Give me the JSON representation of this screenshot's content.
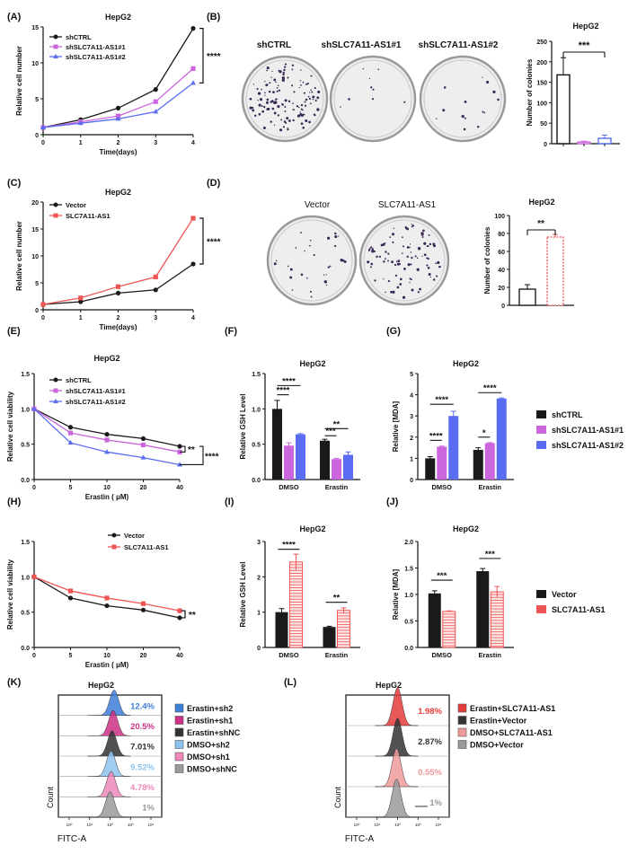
{
  "figure": {
    "panel_letters": [
      "(A)",
      "(B)",
      "(C)",
      "(D)",
      "(E)",
      "(F)",
      "(G)",
      "(H)",
      "(I)",
      "(J)",
      "(K)",
      "(L)"
    ],
    "cell_line": "HepG2",
    "colors": {
      "shCTRL": "#1a1a1a",
      "sh1": "#cc66dd",
      "sh2": "#5a6cf2",
      "vector": "#1a1a1a",
      "slc": "#ee5555",
      "colonyPurple": "#3a2a55",
      "k_colors": [
        "#3d7fd9",
        "#cc2f86",
        "#333333",
        "#8fc3ef",
        "#ee88bb",
        "#9a9a9a"
      ],
      "l_colors": [
        "#e53b3b",
        "#333333",
        "#ef9a9a",
        "#9a9a9a"
      ]
    }
  },
  "chart_data": [
    {
      "id": "A",
      "type": "line",
      "title": "HepG2",
      "xlabel": "Time(days)",
      "ylabel": "Relative cell number",
      "x": [
        0,
        1,
        2,
        3,
        4
      ],
      "xlim": [
        0,
        4
      ],
      "ylim": [
        0,
        15
      ],
      "xticks": [
        "0",
        "1",
        "2",
        "3",
        "4"
      ],
      "yticks": [
        "0",
        "5",
        "10",
        "15"
      ],
      "series": [
        {
          "name": "shCTRL",
          "values": [
            1.0,
            2.1,
            3.7,
            6.3,
            14.8
          ]
        },
        {
          "name": "shSLC7A11-AS1#1",
          "values": [
            1.0,
            1.8,
            2.6,
            4.6,
            9.2
          ]
        },
        {
          "name": "shSLC7A11-AS1#2",
          "values": [
            1.0,
            1.6,
            2.2,
            3.2,
            7.2
          ]
        }
      ],
      "annotations": [
        "****"
      ]
    },
    {
      "id": "B",
      "type": "bar",
      "title": "HepG2",
      "ylabel": "Number of colonies",
      "ylim": [
        0,
        250
      ],
      "yticks": [
        "0",
        "50",
        "100",
        "150",
        "200",
        "250"
      ],
      "categories": [
        "shCTRL",
        "shSLC7A11-AS1#1",
        "shSLC7A11-AS1#2"
      ],
      "values": [
        168,
        4,
        13
      ],
      "errors": [
        42,
        2,
        8
      ],
      "annotations": [
        "***"
      ]
    },
    {
      "id": "C",
      "type": "line",
      "title": "HepG2",
      "xlabel": "Time(days)",
      "ylabel": "Relative cell number",
      "x": [
        0,
        1,
        2,
        3,
        4
      ],
      "xlim": [
        0,
        4
      ],
      "ylim": [
        0,
        20
      ],
      "xticks": [
        "0",
        "1",
        "2",
        "3",
        "4"
      ],
      "yticks": [
        "0",
        "5",
        "10",
        "15",
        "20"
      ],
      "series": [
        {
          "name": "Vector",
          "values": [
            1.0,
            1.5,
            3.1,
            3.7,
            8.5
          ]
        },
        {
          "name": "SLC7A11-AS1",
          "values": [
            1.0,
            2.2,
            4.3,
            6.1,
            17.0
          ]
        }
      ],
      "annotations": [
        "****"
      ]
    },
    {
      "id": "D",
      "type": "bar",
      "title": "HepG2",
      "ylabel": "Number of colonies",
      "ylim": [
        0,
        100
      ],
      "yticks": [
        "0",
        "20",
        "40",
        "60",
        "80",
        "100"
      ],
      "categories": [
        "Vector",
        "SLC7A11-AS1"
      ],
      "values": [
        18,
        76
      ],
      "errors": [
        5,
        3
      ],
      "annotations": [
        "**"
      ]
    },
    {
      "id": "E",
      "type": "line",
      "title": "HepG2",
      "xlabel": "Erastin ( μM)",
      "ylabel": "Relative cell viability",
      "x": [
        0,
        5,
        10,
        20,
        40
      ],
      "xlim": [
        0,
        40
      ],
      "ylim": [
        0,
        1.5
      ],
      "xticks": [
        "0",
        "5",
        "10",
        "20",
        "40"
      ],
      "yticks": [
        "0.0",
        "0.5",
        "1.0",
        "1.5"
      ],
      "series": [
        {
          "name": "shCTRL",
          "values": [
            1.0,
            0.74,
            0.64,
            0.58,
            0.47
          ]
        },
        {
          "name": "shSLC7A11-AS1#1",
          "values": [
            1.0,
            0.66,
            0.56,
            0.49,
            0.39
          ]
        },
        {
          "name": "shSLC7A11-AS1#2",
          "values": [
            1.0,
            0.52,
            0.39,
            0.31,
            0.21
          ]
        }
      ],
      "annotations": [
        "**",
        "****"
      ]
    },
    {
      "id": "F",
      "type": "bar",
      "title": "HepG2",
      "ylabel": "Relative GSH Level",
      "ylim": [
        0,
        1.5
      ],
      "yticks": [
        "0.0",
        "0.5",
        "1.0",
        "1.5"
      ],
      "categories": [
        "DMSO",
        "Erastin"
      ],
      "series": [
        {
          "name": "shCTRL",
          "values": [
            1.0,
            0.55
          ],
          "errors": [
            0.12,
            0.02
          ]
        },
        {
          "name": "shSLC7A11-AS1#1",
          "values": [
            0.48,
            0.29
          ],
          "errors": [
            0.04,
            0.01
          ]
        },
        {
          "name": "shSLC7A11-AS1#2",
          "values": [
            0.64,
            0.35
          ],
          "errors": [
            0.01,
            0.04
          ]
        }
      ],
      "annotations": [
        "****",
        "****",
        "**",
        "***"
      ]
    },
    {
      "id": "G",
      "type": "bar",
      "title": "HepG2",
      "ylabel": "Relative [MDA]",
      "ylim": [
        0,
        5
      ],
      "yticks": [
        "0",
        "1",
        "2",
        "3",
        "4",
        "5"
      ],
      "categories": [
        "DMSO",
        "Erastin"
      ],
      "series": [
        {
          "name": "shCTRL",
          "values": [
            1.0,
            1.4
          ],
          "errors": [
            0.08,
            0.1
          ]
        },
        {
          "name": "shSLC7A11-AS1#1",
          "values": [
            1.55,
            1.72
          ],
          "errors": [
            0.03,
            0.02
          ]
        },
        {
          "name": "shSLC7A11-AS1#2",
          "values": [
            3.0,
            3.82
          ],
          "errors": [
            0.22,
            0.03
          ]
        }
      ],
      "annotations": [
        "****",
        "****",
        "*",
        "****"
      ],
      "legend": [
        "shCTRL",
        "shSLC7A11-AS1#1",
        "shSLC7A11-AS1#2"
      ]
    },
    {
      "id": "H",
      "type": "line",
      "title": "",
      "xlabel": "Erastin ( μM)",
      "ylabel": "Relative cell viability",
      "x": [
        0,
        5,
        10,
        20,
        40
      ],
      "xlim": [
        0,
        40
      ],
      "ylim": [
        0,
        1.5
      ],
      "xticks": [
        "0",
        "5",
        "10",
        "20",
        "40"
      ],
      "yticks": [
        "0.0",
        "0.5",
        "1.0",
        "1.5"
      ],
      "series": [
        {
          "name": "Vector",
          "values": [
            1.0,
            0.7,
            0.59,
            0.53,
            0.42
          ]
        },
        {
          "name": "SLC7A11-AS1",
          "values": [
            1.0,
            0.8,
            0.7,
            0.62,
            0.52
          ]
        }
      ],
      "annotations": [
        "**"
      ]
    },
    {
      "id": "I",
      "type": "bar",
      "title": "HepG2",
      "ylabel": "Relative GSH Level",
      "ylim": [
        0,
        3
      ],
      "yticks": [
        "0",
        "1",
        "2",
        "3"
      ],
      "categories": [
        "DMSO",
        "Erastin"
      ],
      "series": [
        {
          "name": "Vector",
          "values": [
            1.0,
            0.58
          ],
          "errors": [
            0.1,
            0.02
          ]
        },
        {
          "name": "SLC7A11-AS1",
          "values": [
            2.42,
            1.05
          ],
          "errors": [
            0.22,
            0.07
          ]
        }
      ],
      "annotations": [
        "****",
        "**"
      ]
    },
    {
      "id": "J",
      "type": "bar",
      "title": "HepG2",
      "ylabel": "Relative [MDA]",
      "ylim": [
        0,
        2.0
      ],
      "yticks": [
        "0.0",
        "0.5",
        "1.0",
        "1.5",
        "2.0"
      ],
      "categories": [
        "DMSO",
        "Erastin"
      ],
      "series": [
        {
          "name": "Vector",
          "values": [
            1.02,
            1.44
          ],
          "errors": [
            0.05,
            0.05
          ]
        },
        {
          "name": "SLC7A11-AS1",
          "values": [
            0.68,
            1.05
          ],
          "errors": [
            0.01,
            0.1
          ]
        }
      ],
      "annotations": [
        "***",
        "***"
      ],
      "legend": [
        "Vector",
        "SLC7A11-AS1"
      ]
    },
    {
      "id": "K",
      "type": "area",
      "title": "HepG2",
      "xlabel": "FITC-A",
      "ylabel": "Count",
      "xticks": [
        "10⁰",
        "10¹",
        "10²",
        "10³",
        "10⁴"
      ],
      "series": [
        {
          "name": "Erastin+sh2",
          "pct": "12.4%",
          "peak": 2.2
        },
        {
          "name": "Erastin+sh1",
          "pct": "20.5%",
          "peak": 2.15
        },
        {
          "name": "Erastin+shNC",
          "pct": "7.01%",
          "peak": 2.1
        },
        {
          "name": "DMSO+sh2",
          "pct": "9.52%",
          "peak": 2.05
        },
        {
          "name": "DMSO+sh1",
          "pct": "4.78%",
          "peak": 2.05
        },
        {
          "name": "DMSO+shNC",
          "pct": "1%",
          "peak": 2.0
        }
      ]
    },
    {
      "id": "L",
      "type": "area",
      "title": "HepG2",
      "xlabel": "FITC-A",
      "ylabel": "Count",
      "xticks": [
        "10⁰",
        "10¹",
        "10²",
        "10³",
        "10⁴"
      ],
      "series": [
        {
          "name": "Erastin+SLC7A11-AS1",
          "pct": "1.98%",
          "peak": 2.0
        },
        {
          "name": "Erastin+Vector",
          "pct": "2.87%",
          "peak": 2.0
        },
        {
          "name": "DMSO+SLC7A11-AS1",
          "pct": "0.55%",
          "peak": 1.95
        },
        {
          "name": "DMSO+Vector",
          "pct": "1%",
          "peak": 1.95
        }
      ]
    }
  ]
}
